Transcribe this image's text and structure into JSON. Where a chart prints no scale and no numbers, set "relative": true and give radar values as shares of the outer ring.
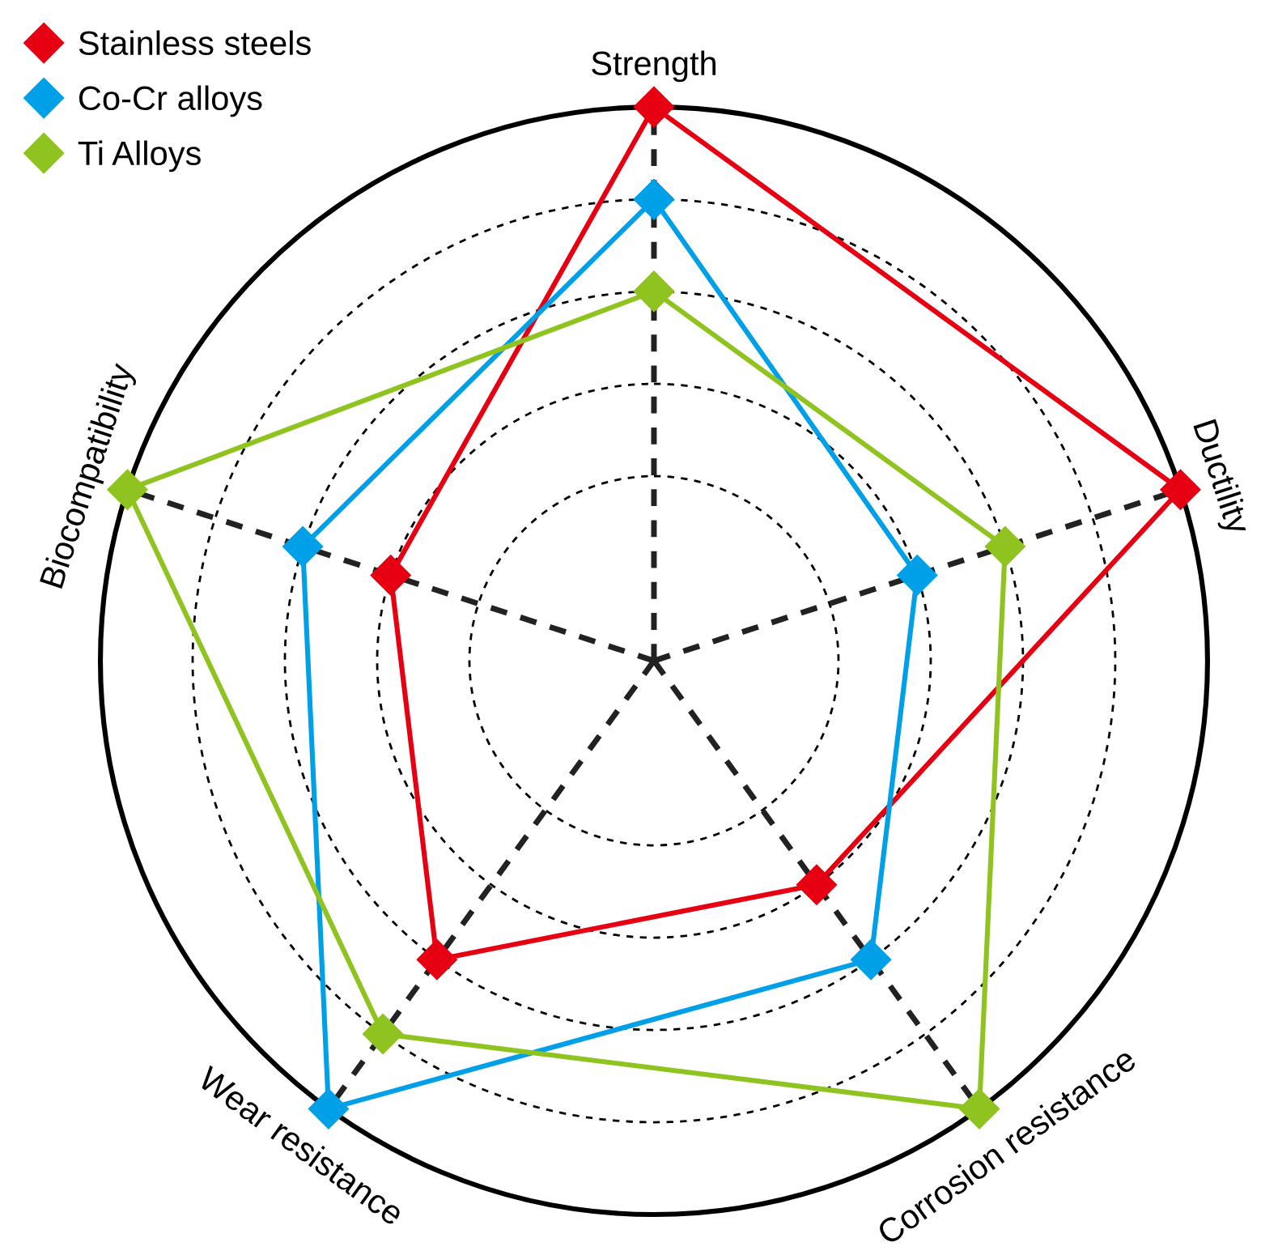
{
  "chart_data": {
    "type": "radar",
    "relative": true,
    "categories": [
      "Strength",
      "Ductility",
      "Corrosion resistance",
      "Wear resistance",
      "Biocompatibility"
    ],
    "series": [
      {
        "name": "Stainless steels",
        "color": "#e60012",
        "values": [
          1.0,
          1.0,
          0.5,
          0.667,
          0.5
        ]
      },
      {
        "name": "Co-Cr alloys",
        "color": "#00a0e9",
        "values": [
          0.833,
          0.5,
          0.667,
          1.0,
          0.667
        ]
      },
      {
        "name": "Ti Alloys",
        "color": "#8fc31f",
        "values": [
          0.667,
          0.667,
          1.0,
          0.833,
          1.0
        ]
      }
    ],
    "grid": true,
    "legend": "top left",
    "marker": "diamond",
    "line_style": "solid"
  }
}
